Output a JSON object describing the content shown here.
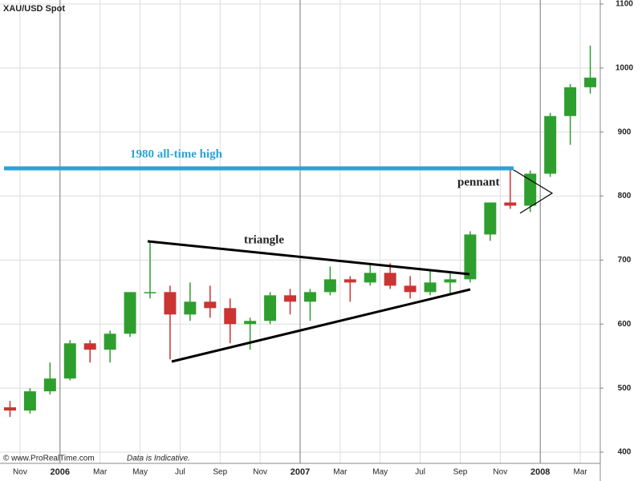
{
  "chart_data": {
    "type": "candlestick",
    "title": "XAU/USD Spot",
    "source": "© www.ProRealTime.com",
    "note": "Data is Indicative.",
    "annotations": [
      "1980 all-time high",
      "triangle",
      "pennant"
    ],
    "x": [
      "2005-10",
      "2005-11",
      "2005-12",
      "2006-01",
      "2006-02",
      "2006-03",
      "2006-04",
      "2006-05",
      "2006-06",
      "2006-07",
      "2006-08",
      "2006-09",
      "2006-10",
      "2006-11",
      "2006-12",
      "2007-01",
      "2007-02",
      "2007-03",
      "2007-04",
      "2007-05",
      "2007-06",
      "2007-07",
      "2007-08",
      "2007-09",
      "2007-10",
      "2007-11",
      "2007-12",
      "2008-01",
      "2008-02",
      "2008-03"
    ],
    "open": [
      470,
      465,
      495,
      515,
      570,
      560,
      585,
      650,
      650,
      615,
      635,
      625,
      600,
      605,
      645,
      635,
      650,
      670,
      665,
      680,
      660,
      650,
      665,
      670,
      740,
      790,
      785,
      835,
      925,
      970
    ],
    "high": [
      480,
      500,
      540,
      575,
      575,
      590,
      650,
      730,
      660,
      665,
      660,
      640,
      610,
      650,
      655,
      655,
      690,
      675,
      695,
      695,
      675,
      685,
      680,
      745,
      790,
      845,
      840,
      930,
      975,
      1035
    ],
    "low": [
      455,
      460,
      490,
      512,
      540,
      540,
      580,
      640,
      545,
      605,
      610,
      570,
      560,
      600,
      615,
      605,
      645,
      635,
      660,
      655,
      640,
      645,
      645,
      665,
      730,
      780,
      775,
      830,
      880,
      960
    ],
    "close": [
      465,
      495,
      515,
      570,
      560,
      585,
      650,
      650,
      615,
      635,
      625,
      600,
      605,
      645,
      635,
      650,
      670,
      665,
      680,
      660,
      650,
      665,
      670,
      740,
      790,
      785,
      835,
      925,
      970,
      985
    ],
    "up_color": "#2e9e2e",
    "down_color": "#cc3333",
    "xlim": [
      "2005-10",
      "2008-03"
    ],
    "xticks": [
      {
        "value": "2005-11",
        "label": "Nov"
      },
      {
        "value": "2006-01",
        "label": "2006"
      },
      {
        "value": "2006-03",
        "label": "Mar"
      },
      {
        "value": "2006-05",
        "label": "May"
      },
      {
        "value": "2006-07",
        "label": "Jul"
      },
      {
        "value": "2006-09",
        "label": "Sep"
      },
      {
        "value": "2006-11",
        "label": "Nov"
      },
      {
        "value": "2007-01",
        "label": "2007"
      },
      {
        "value": "2007-03",
        "label": "Mar"
      },
      {
        "value": "2007-05",
        "label": "May"
      },
      {
        "value": "2007-07",
        "label": "Jul"
      },
      {
        "value": "2007-09",
        "label": "Sep"
      },
      {
        "value": "2007-11",
        "label": "Nov"
      },
      {
        "value": "2008-01",
        "label": "2008"
      },
      {
        "value": "2008-03",
        "label": "Mar"
      }
    ],
    "ylim": [
      400,
      1100
    ],
    "yticks": [
      400,
      500,
      600,
      700,
      800,
      900,
      1000,
      1100
    ],
    "grid": true
  }
}
